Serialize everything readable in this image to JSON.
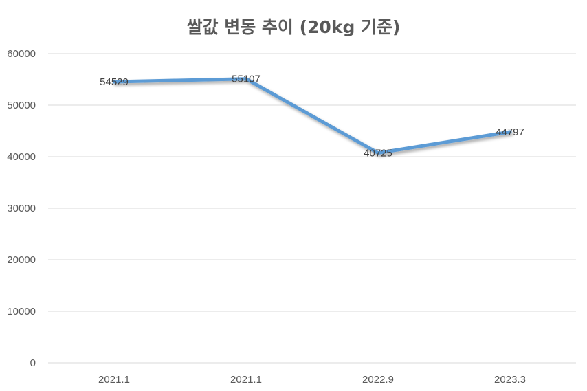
{
  "chart_data": {
    "type": "line",
    "title": "쌀값 변동 추이 (20kg 기준)",
    "categories": [
      "2021.1",
      "2021.1",
      "2022.9",
      "2023.3"
    ],
    "series": [
      {
        "values": [
          54529,
          55107,
          40725,
          44797
        ]
      }
    ],
    "ylim": [
      0,
      60000
    ],
    "yticks": [
      0,
      10000,
      20000,
      30000,
      40000,
      50000,
      60000
    ],
    "grid": true,
    "data_labels": true,
    "colors": {
      "line": "#5b9bd5",
      "grid": "#d9d9d9",
      "text": "#595959"
    }
  }
}
